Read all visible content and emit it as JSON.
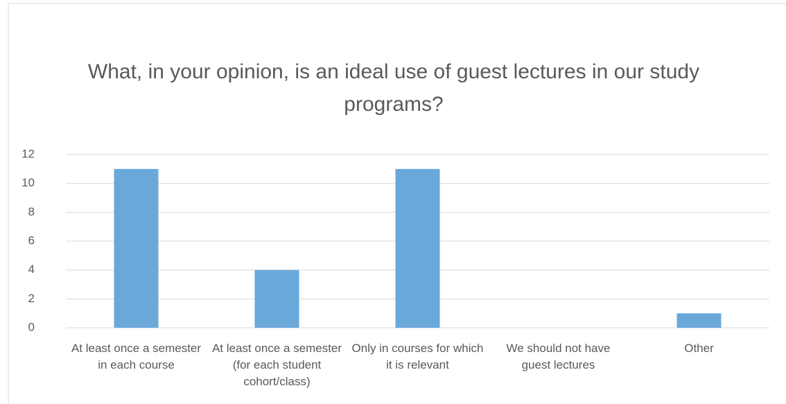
{
  "chart_data": {
    "type": "bar",
    "title": "What, in your opinion, is an ideal use of guest lectures in our study programs?",
    "categories": [
      "At least once a semester in each course",
      "At least once a semester (for each student cohort/class)",
      "Only in courses for which it is relevant",
      "We should not have guest lectures",
      "Other"
    ],
    "values": [
      11,
      4,
      11,
      0,
      1
    ],
    "color": "#6aa8da",
    "ylim": [
      0,
      12
    ],
    "yticks": [
      0,
      2,
      4,
      6,
      8,
      10,
      12
    ],
    "grid": true
  }
}
